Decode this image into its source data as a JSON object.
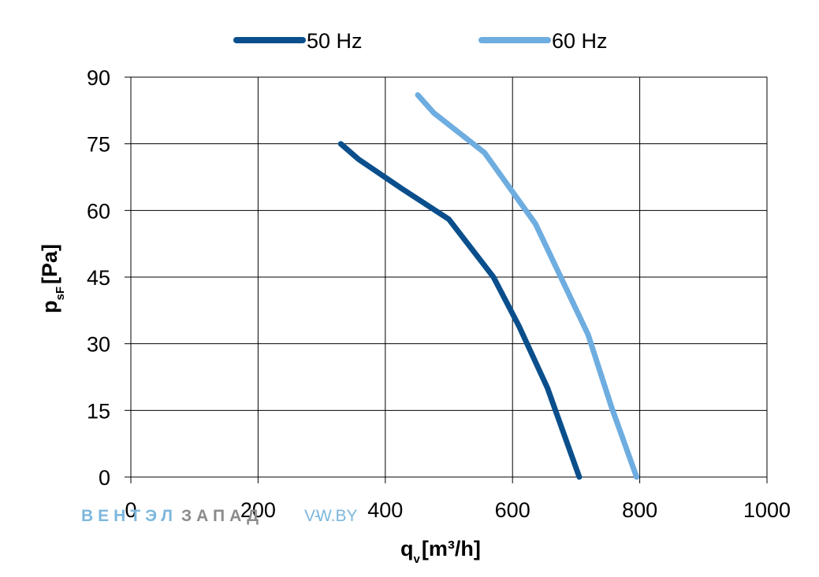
{
  "chart_data": {
    "type": "line",
    "title": "",
    "xlabel": {
      "main": "q",
      "sub": "v",
      "rest": "[m³/h]"
    },
    "ylabel": {
      "main": "p",
      "sub": "sF",
      "rest": "[Pa]"
    },
    "xlim": [
      0,
      1000
    ],
    "ylim": [
      0,
      90
    ],
    "xticks": [
      0,
      200,
      400,
      600,
      800,
      1000
    ],
    "yticks": [
      0,
      15,
      30,
      45,
      60,
      75,
      90
    ],
    "grid": true,
    "legend_position": "top-center",
    "series": [
      {
        "name": "50 Hz",
        "color": "#0a4f8c",
        "x": [
          330,
          358,
          425,
          500,
          570,
          610,
          655,
          705
        ],
        "y": [
          75,
          71.5,
          65,
          58,
          45,
          34,
          20,
          0
        ]
      },
      {
        "name": "60 Hz",
        "color": "#6eade0",
        "x": [
          451,
          476,
          556,
          636,
          719,
          755,
          795
        ],
        "y": [
          86,
          82,
          73,
          57,
          32,
          16,
          0
        ]
      }
    ]
  },
  "watermark": {
    "brand_part1": "ВЕНТЭЛ",
    "brand_part2": "ЗАПАД",
    "site_part1": "V-",
    "site_part2": "W.BY",
    "color_light": "#7db7dd",
    "color_grey": "#8c8c8c"
  }
}
